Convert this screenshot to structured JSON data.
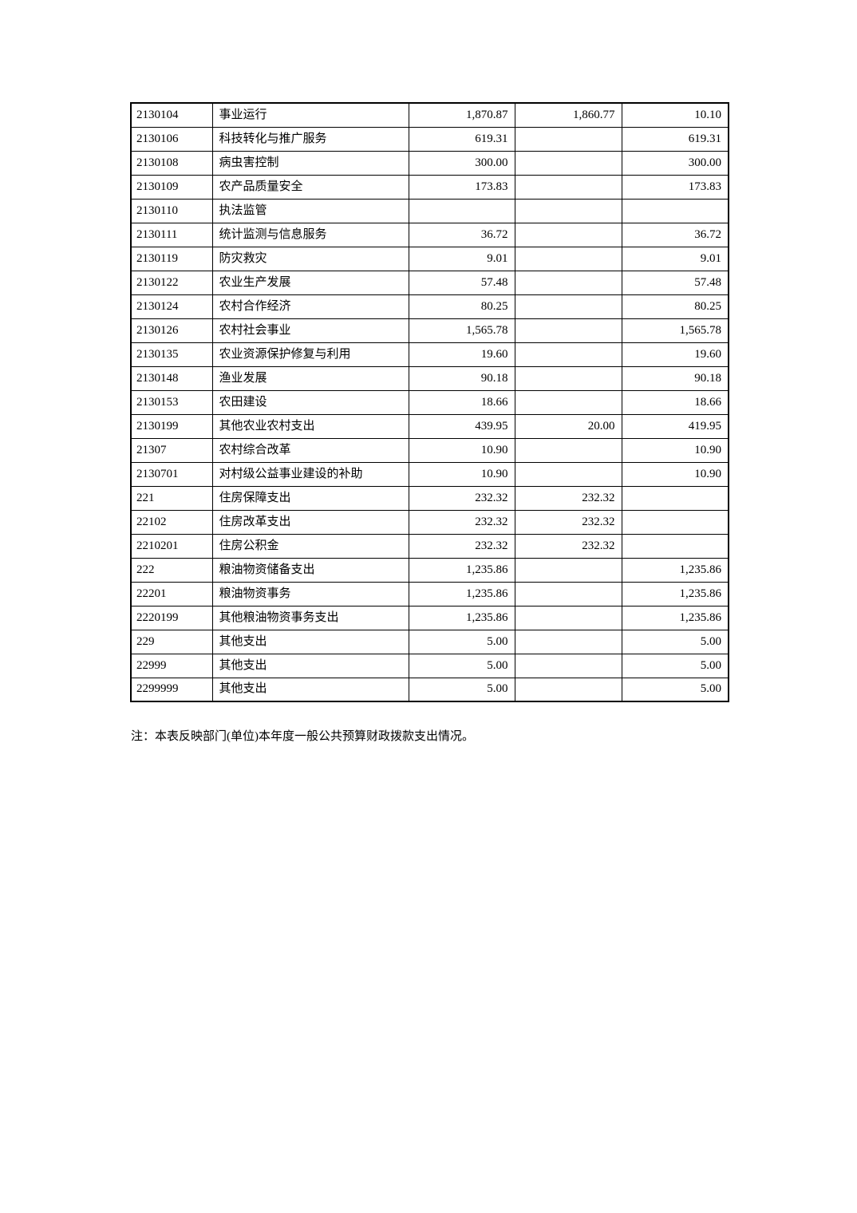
{
  "table": {
    "rows": [
      {
        "code": "2130104",
        "name": "事业运行",
        "amount1": "1,870.87",
        "amount2": "1,860.77",
        "amount3": "10.10"
      },
      {
        "code": "2130106",
        "name": "科技转化与推广服务",
        "amount1": "619.31",
        "amount2": "",
        "amount3": "619.31"
      },
      {
        "code": "2130108",
        "name": "病虫害控制",
        "amount1": "300.00",
        "amount2": "",
        "amount3": "300.00"
      },
      {
        "code": "2130109",
        "name": "农产品质量安全",
        "amount1": "173.83",
        "amount2": "",
        "amount3": "173.83"
      },
      {
        "code": "2130110",
        "name": "执法监管",
        "amount1": "",
        "amount2": "",
        "amount3": ""
      },
      {
        "code": "2130111",
        "name": "统计监测与信息服务",
        "amount1": "36.72",
        "amount2": "",
        "amount3": "36.72"
      },
      {
        "code": "2130119",
        "name": "防灾救灾",
        "amount1": "9.01",
        "amount2": "",
        "amount3": "9.01"
      },
      {
        "code": "2130122",
        "name": "农业生产发展",
        "amount1": "57.48",
        "amount2": "",
        "amount3": "57.48"
      },
      {
        "code": "2130124",
        "name": "农村合作经济",
        "amount1": "80.25",
        "amount2": "",
        "amount3": "80.25"
      },
      {
        "code": "2130126",
        "name": "农村社会事业",
        "amount1": "1,565.78",
        "amount2": "",
        "amount3": "1,565.78"
      },
      {
        "code": "2130135",
        "name": "农业资源保护修复与利用",
        "amount1": "19.60",
        "amount2": "",
        "amount3": "19.60"
      },
      {
        "code": "2130148",
        "name": "渔业发展",
        "amount1": "90.18",
        "amount2": "",
        "amount3": "90.18"
      },
      {
        "code": "2130153",
        "name": "农田建设",
        "amount1": "18.66",
        "amount2": "",
        "amount3": "18.66"
      },
      {
        "code": "2130199",
        "name": "其他农业农村支出",
        "amount1": "439.95",
        "amount2": "20.00",
        "amount3": "419.95"
      },
      {
        "code": "21307",
        "name": "农村综合改革",
        "amount1": "10.90",
        "amount2": "",
        "amount3": "10.90"
      },
      {
        "code": "2130701",
        "name": "对村级公益事业建设的补助",
        "amount1": "10.90",
        "amount2": "",
        "amount3": "10.90"
      },
      {
        "code": "221",
        "name": "住房保障支出",
        "amount1": "232.32",
        "amount2": "232.32",
        "amount3": ""
      },
      {
        "code": "22102",
        "name": "住房改革支出",
        "amount1": "232.32",
        "amount2": "232.32",
        "amount3": ""
      },
      {
        "code": "2210201",
        "name": "住房公积金",
        "amount1": "232.32",
        "amount2": "232.32",
        "amount3": ""
      },
      {
        "code": "222",
        "name": "粮油物资储备支出",
        "amount1": "1,235.86",
        "amount2": "",
        "amount3": "1,235.86"
      },
      {
        "code": "22201",
        "name": "粮油物资事务",
        "amount1": "1,235.86",
        "amount2": "",
        "amount3": "1,235.86"
      },
      {
        "code": "2220199",
        "name": "其他粮油物资事务支出",
        "amount1": "1,235.86",
        "amount2": "",
        "amount3": "1,235.86"
      },
      {
        "code": "229",
        "name": "其他支出",
        "amount1": "5.00",
        "amount2": "",
        "amount3": "5.00"
      },
      {
        "code": "22999",
        "name": "其他支出",
        "amount1": "5.00",
        "amount2": "",
        "amount3": "5.00"
      },
      {
        "code": "2299999",
        "name": "其他支出",
        "amount1": "5.00",
        "amount2": "",
        "amount3": "5.00"
      }
    ]
  },
  "note": "注：本表反映部门(单位)本年度一般公共预算财政拨款支出情况。"
}
